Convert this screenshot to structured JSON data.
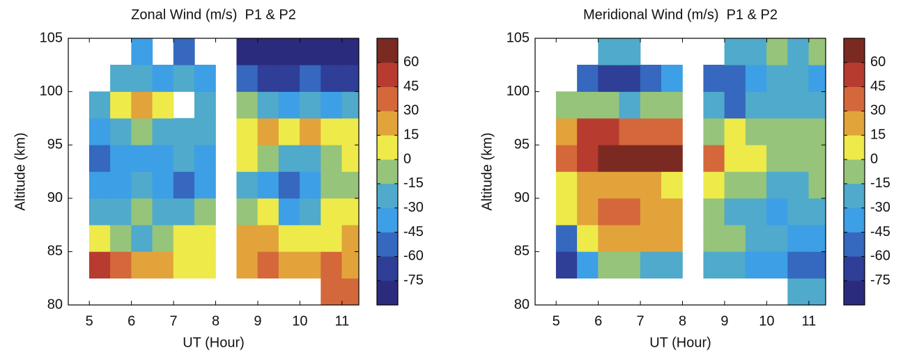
{
  "chart_data": [
    {
      "type": "contourf",
      "title": "Zonal Wind (m/s)  P1 & P2",
      "xlabel": "UT (Hour)",
      "ylabel": "Altitude (km)",
      "xlim": [
        4.5,
        11.4
      ],
      "ylim": [
        80,
        105
      ],
      "xticks": [
        5,
        6,
        7,
        8,
        9,
        10,
        11
      ],
      "yticks": [
        80,
        85,
        90,
        95,
        100,
        105
      ],
      "x": [
        5.25,
        5.75,
        6.25,
        6.75,
        7.25,
        7.75,
        8.25,
        8.75,
        9.25,
        9.75,
        10.25,
        10.75,
        11.25
      ],
      "y": [
        81.25,
        83.75,
        86.25,
        88.75,
        91.25,
        93.75,
        96.25,
        98.75,
        101.25,
        103.75
      ],
      "z": [
        [
          null,
          null,
          null,
          null,
          null,
          null,
          null,
          null,
          null,
          null,
          null,
          45,
          45
        ],
        [
          60,
          45,
          30,
          30,
          15,
          15,
          null,
          30,
          45,
          30,
          30,
          45,
          30
        ],
        [
          15,
          0,
          -15,
          0,
          15,
          15,
          null,
          30,
          30,
          15,
          15,
          15,
          30
        ],
        [
          -15,
          -15,
          0,
          -15,
          -15,
          0,
          null,
          0,
          15,
          -30,
          -15,
          15,
          15
        ],
        [
          -30,
          -30,
          -15,
          -30,
          -45,
          -30,
          null,
          -15,
          -30,
          -45,
          -30,
          0,
          0
        ],
        [
          -45,
          -30,
          -30,
          -30,
          -15,
          -30,
          null,
          15,
          0,
          -15,
          -15,
          0,
          15
        ],
        [
          -30,
          -15,
          0,
          -15,
          -15,
          -15,
          null,
          15,
          30,
          15,
          30,
          15,
          15
        ],
        [
          -15,
          15,
          30,
          15,
          null,
          -15,
          null,
          0,
          -15,
          -30,
          -15,
          -30,
          -15
        ],
        [
          null,
          -15,
          -15,
          -30,
          -15,
          -30,
          null,
          -45,
          -60,
          -60,
          -45,
          -60,
          -60
        ],
        [
          null,
          null,
          -30,
          null,
          -45,
          null,
          null,
          -75,
          -75,
          -75,
          -75,
          -75,
          -75
        ]
      ],
      "clim": [
        -90,
        75
      ],
      "cticks": [
        -75,
        -60,
        -45,
        -30,
        -15,
        0,
        15,
        30,
        45,
        60
      ],
      "colors": [
        "#2b2b7d",
        "#2f3e96",
        "#3568be",
        "#3d9fe6",
        "#4faacb",
        "#96c47a",
        "#eeea4a",
        "#e2a33b",
        "#d4683a",
        "#b83b30",
        "#7b2a22"
      ]
    },
    {
      "type": "contourf",
      "title": "Meridional Wind (m/s)  P1 & P2",
      "xlabel": "UT (Hour)",
      "ylabel": "Altitude (km)",
      "xlim": [
        4.5,
        11.4
      ],
      "ylim": [
        80,
        105
      ],
      "xticks": [
        5,
        6,
        7,
        8,
        9,
        10,
        11
      ],
      "yticks": [
        80,
        85,
        90,
        95,
        100,
        105
      ],
      "x": [
        5.25,
        5.75,
        6.25,
        6.75,
        7.25,
        7.75,
        8.25,
        8.75,
        9.25,
        9.75,
        10.25,
        10.75,
        11.25
      ],
      "y": [
        81.25,
        83.75,
        86.25,
        88.75,
        91.25,
        93.75,
        96.25,
        98.75,
        101.25,
        103.75
      ],
      "z": [
        [
          null,
          null,
          null,
          null,
          null,
          null,
          null,
          null,
          null,
          null,
          null,
          -15,
          -15
        ],
        [
          -60,
          -30,
          0,
          0,
          -15,
          -15,
          null,
          -15,
          -15,
          -30,
          -30,
          -45,
          -45
        ],
        [
          -45,
          15,
          30,
          30,
          30,
          30,
          null,
          0,
          0,
          -15,
          -15,
          -30,
          -30
        ],
        [
          15,
          30,
          45,
          45,
          30,
          30,
          null,
          0,
          -15,
          -15,
          -30,
          -15,
          -15
        ],
        [
          15,
          30,
          30,
          30,
          30,
          15,
          null,
          15,
          0,
          0,
          -15,
          -15,
          0
        ],
        [
          45,
          60,
          75,
          75,
          75,
          75,
          null,
          45,
          15,
          15,
          0,
          0,
          0
        ],
        [
          30,
          60,
          60,
          45,
          45,
          45,
          null,
          0,
          15,
          0,
          0,
          0,
          0
        ],
        [
          0,
          0,
          0,
          -15,
          0,
          0,
          null,
          -15,
          -45,
          -15,
          -15,
          -15,
          -15
        ],
        [
          null,
          -45,
          -60,
          -60,
          -45,
          -30,
          null,
          -45,
          -45,
          -30,
          -15,
          -15,
          -30
        ],
        [
          null,
          null,
          -15,
          -15,
          null,
          null,
          null,
          null,
          -15,
          -15,
          0,
          -15,
          0
        ]
      ],
      "clim": [
        -90,
        75
      ],
      "cticks": [
        -75,
        -60,
        -45,
        -30,
        -15,
        0,
        15,
        30,
        45,
        60
      ],
      "colors": [
        "#2b2b7d",
        "#2f3e96",
        "#3568be",
        "#3d9fe6",
        "#4faacb",
        "#96c47a",
        "#eeea4a",
        "#e2a33b",
        "#d4683a",
        "#b83b30",
        "#7b2a22"
      ]
    }
  ]
}
